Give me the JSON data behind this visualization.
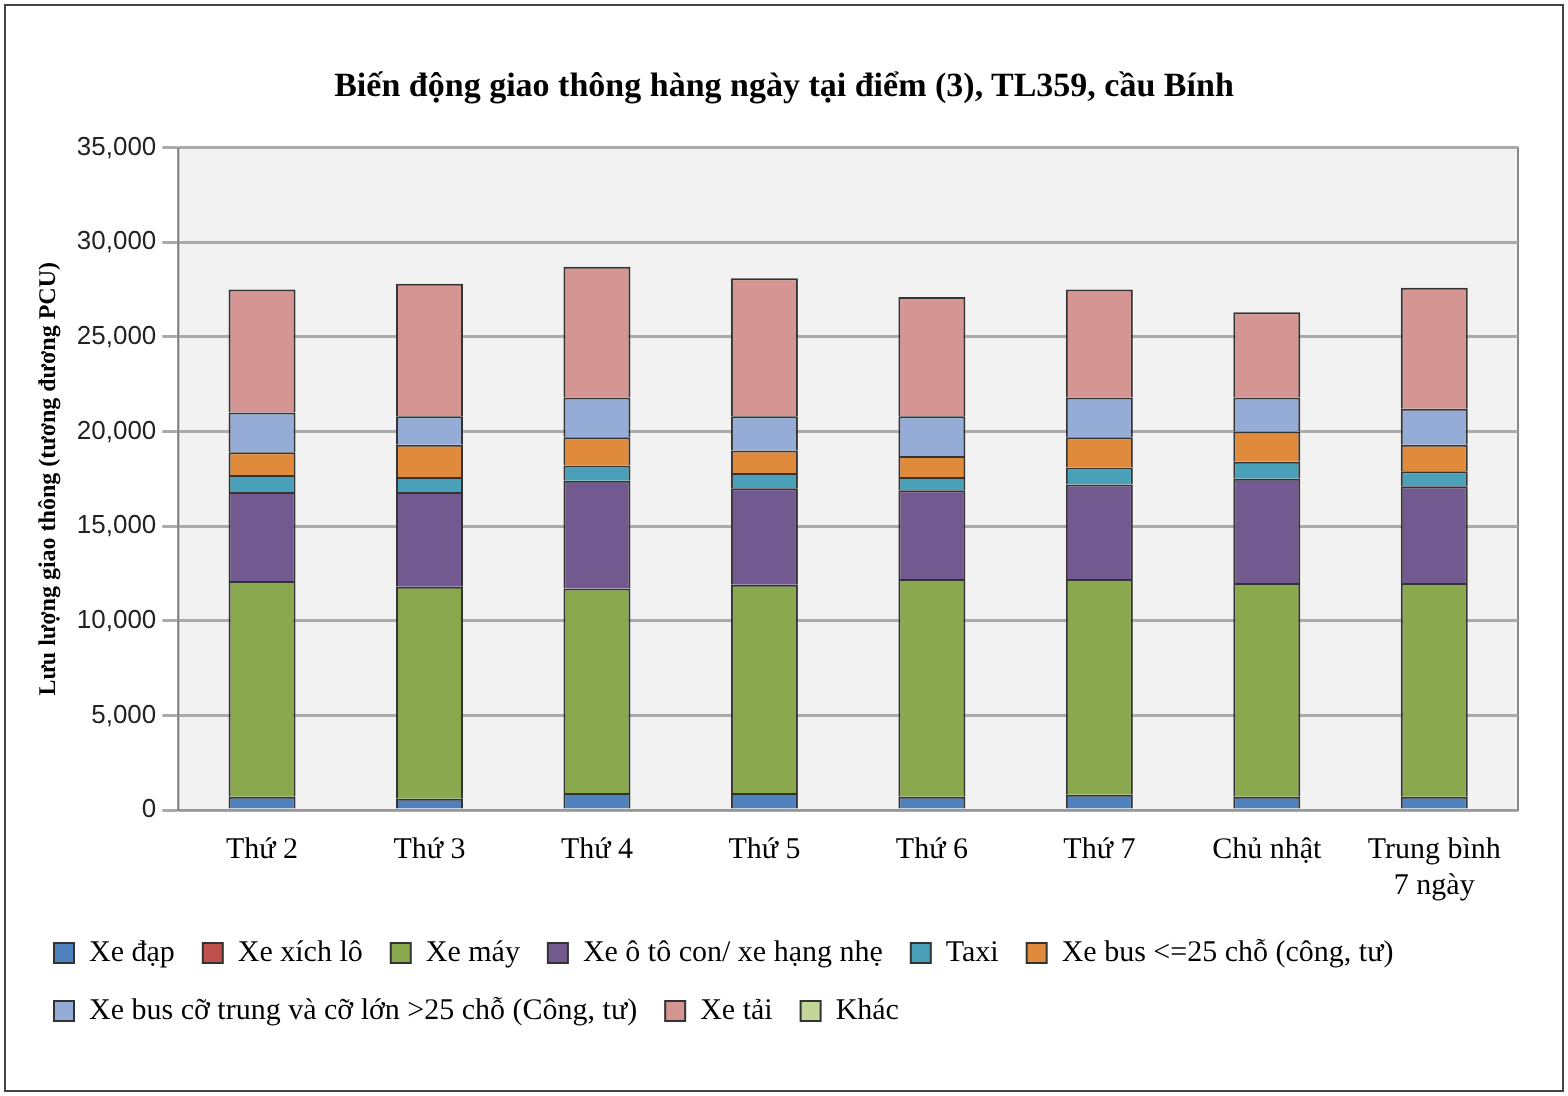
{
  "chart_data": {
    "type": "bar",
    "stacked": true,
    "title": "Biến động giao thông hàng ngày tại điểm (3), TL359, cầu Bính",
    "ylabel": "Lưu lượng giao thông (tương đương PCU)",
    "categories": [
      "Thứ 2",
      "Thứ 3",
      "Thứ 4",
      "Thứ 5",
      "Thứ 6",
      "Thứ 7",
      "Chủ nhật",
      "Trung bình 7 ngày"
    ],
    "ylim": [
      0,
      35000
    ],
    "yticks": [
      {
        "value": 0,
        "label": "0"
      },
      {
        "value": 5000,
        "label": "5,000"
      },
      {
        "value": 10000,
        "label": "10,000"
      },
      {
        "value": 15000,
        "label": "15,000"
      },
      {
        "value": 20000,
        "label": "20,000"
      },
      {
        "value": 25000,
        "label": "25,000"
      },
      {
        "value": 30000,
        "label": "30,000"
      },
      {
        "value": 35000,
        "label": "35,000"
      }
    ],
    "grid": "y",
    "legend": "bottom",
    "series": [
      {
        "name": "Xe đạp",
        "color": "#4f81bd",
        "values": [
          700,
          600,
          900,
          900,
          700,
          800,
          700,
          700
        ]
      },
      {
        "name": "Xe xích lô",
        "color": "#c0504d",
        "values": [
          0,
          0,
          0,
          0,
          0,
          0,
          0,
          0
        ]
      },
      {
        "name": "Xe máy",
        "color": "#8aa84e",
        "values": [
          11400,
          11200,
          10800,
          11000,
          11500,
          11400,
          11300,
          11300
        ]
      },
      {
        "name": "Xe ô tô con/ xe hạng nhẹ",
        "color": "#72598f",
        "values": [
          4700,
          5000,
          5700,
          5100,
          4700,
          5000,
          5500,
          5100
        ]
      },
      {
        "name": "Taxi",
        "color": "#4aa0b8",
        "values": [
          900,
          800,
          800,
          800,
          700,
          900,
          900,
          800
        ]
      },
      {
        "name": "Xe bus <=25 chỗ (công, tư)",
        "color": "#e08a3c",
        "values": [
          1200,
          1700,
          1500,
          1200,
          1100,
          1600,
          1600,
          1400
        ]
      },
      {
        "name": "Xe bus cỡ trung và cỡ lớn >25 chỗ (Công, tư)",
        "color": "#95acd6",
        "values": [
          2100,
          1500,
          2100,
          1800,
          2100,
          2100,
          1800,
          1900
        ]
      },
      {
        "name": "Xe tải",
        "color": "#d59593",
        "values": [
          6500,
          7000,
          6900,
          7300,
          6300,
          5700,
          4500,
          6400
        ]
      },
      {
        "name": "Khác",
        "color": "#c4d79b",
        "values": [
          0,
          0,
          0,
          0,
          0,
          0,
          0,
          0
        ]
      }
    ]
  }
}
